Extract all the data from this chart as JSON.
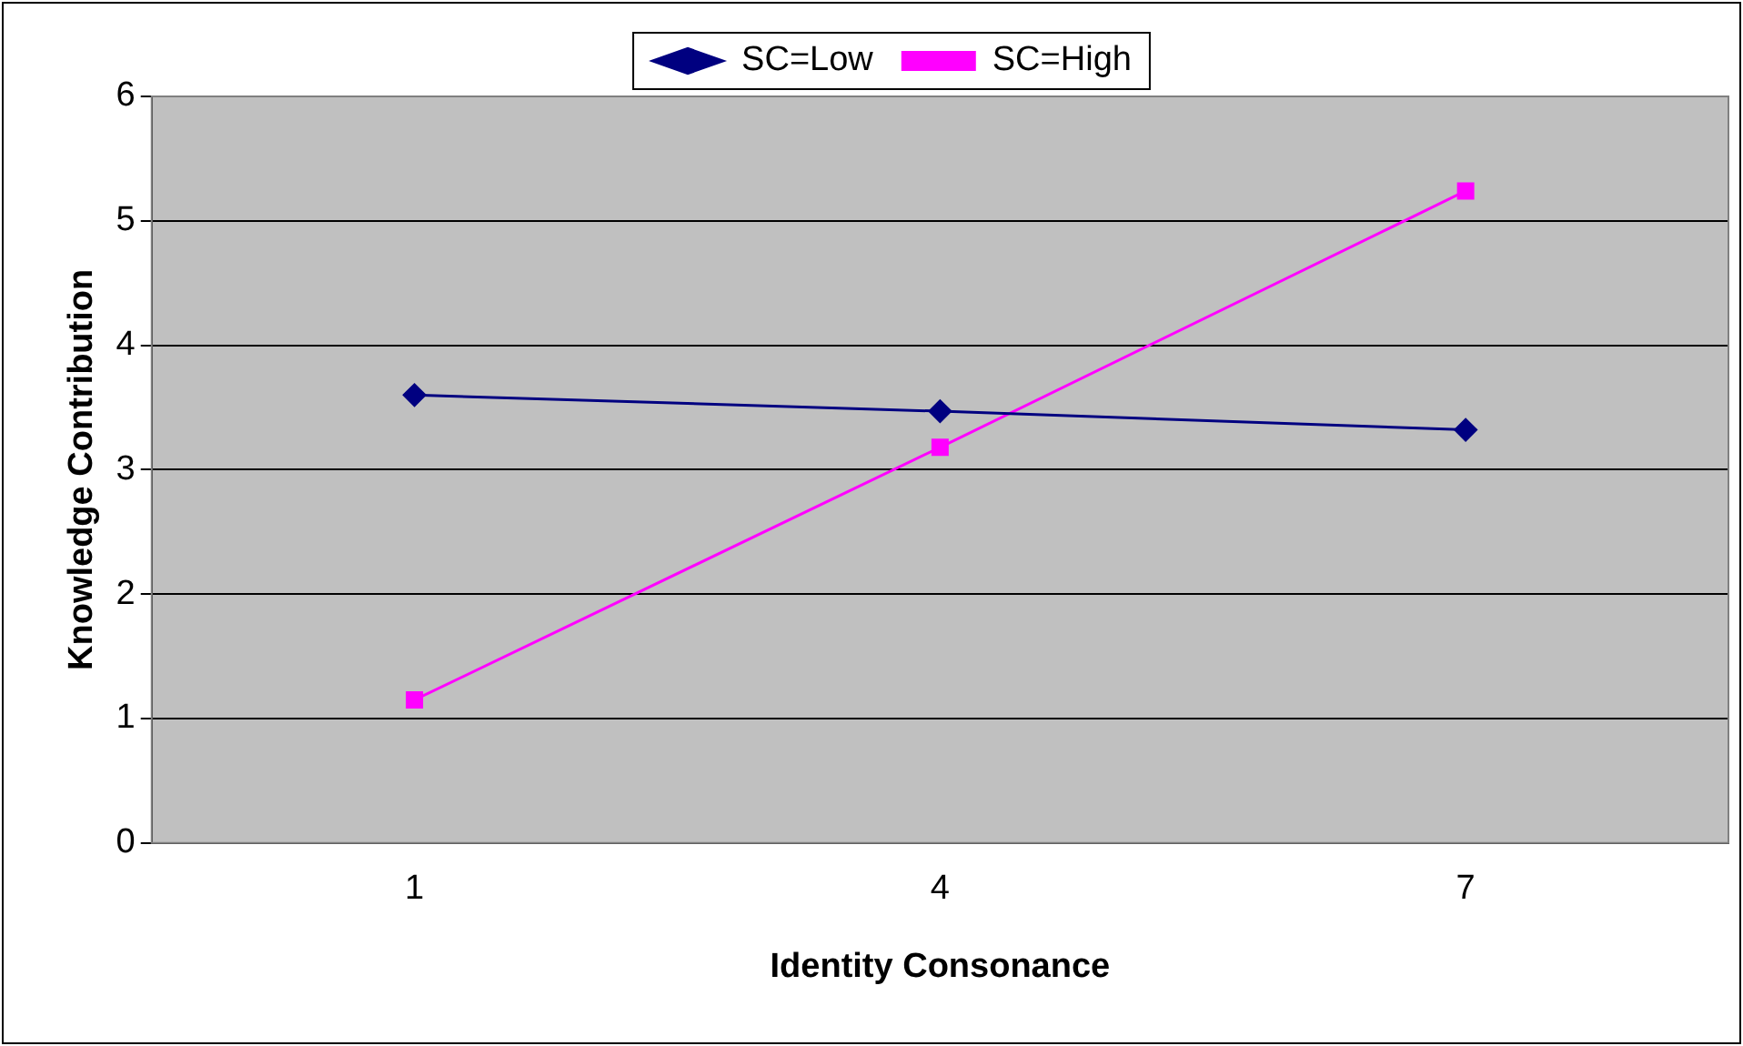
{
  "chart_data": {
    "type": "line",
    "xlabel": "Identity Consonance",
    "ylabel": "Knowledge Contribution",
    "categories": [
      "1",
      "4",
      "7"
    ],
    "series": [
      {
        "name": "SC=Low",
        "color": "#000080",
        "marker": "diamond",
        "values": [
          3.6,
          3.47,
          3.32
        ]
      },
      {
        "name": "SC=High",
        "color": "#ff00ff",
        "marker": "square",
        "values": [
          1.15,
          3.18,
          5.24
        ]
      }
    ],
    "ylim": [
      0,
      6
    ],
    "yticks": [
      0,
      1,
      2,
      3,
      4,
      5,
      6
    ],
    "grid": "y",
    "legend": "top",
    "line_style": "solid"
  }
}
